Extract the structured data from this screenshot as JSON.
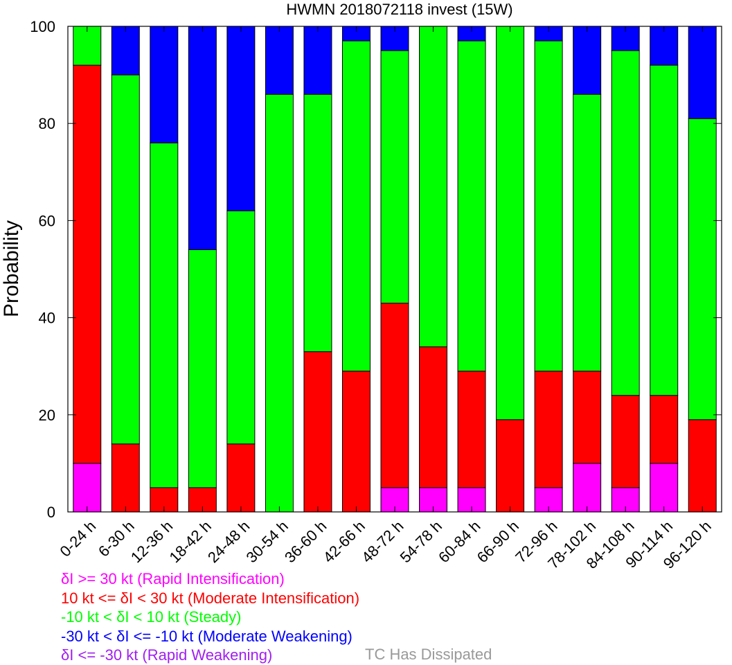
{
  "chart_data": {
    "type": "bar",
    "stacked": true,
    "title": "HWMN 2018072118 invest (15W)",
    "xlabel": "",
    "ylabel": "Probability",
    "ylim": [
      0,
      100
    ],
    "yticks": [
      0,
      20,
      40,
      60,
      80,
      100
    ],
    "grid": false,
    "categories": [
      "0-24 h",
      "6-30 h",
      "12-36 h",
      "18-42 h",
      "24-48 h",
      "30-54 h",
      "36-60 h",
      "42-66 h",
      "48-72 h",
      "54-78 h",
      "60-84 h",
      "66-90 h",
      "72-96 h",
      "78-102 h",
      "84-108 h",
      "90-114 h",
      "96-120 h"
    ],
    "series": [
      {
        "color": "#ff00ff",
        "values": [
          10,
          0,
          0,
          0,
          0,
          0,
          0,
          0,
          5,
          5,
          5,
          0,
          5,
          10,
          5,
          10,
          0
        ]
      },
      {
        "color": "#ff0000",
        "values": [
          82,
          14,
          5,
          5,
          14,
          0,
          33,
          29,
          38,
          29,
          24,
          19,
          24,
          19,
          19,
          14,
          19
        ]
      },
      {
        "color": "#00ff00",
        "values": [
          8,
          76,
          71,
          49,
          48,
          86,
          53,
          68,
          52,
          66,
          68,
          81,
          68,
          57,
          71,
          68,
          62
        ]
      },
      {
        "color": "#0000ff",
        "values": [
          0,
          10,
          24,
          46,
          38,
          14,
          14,
          3,
          5,
          0,
          3,
          0,
          3,
          14,
          5,
          8,
          19
        ]
      },
      {
        "color": "#a020f0",
        "values": [
          0,
          0,
          0,
          0,
          0,
          0,
          0,
          0,
          0,
          0,
          0,
          0,
          0,
          0,
          0,
          0,
          0
        ]
      }
    ]
  },
  "legend": {
    "items": [
      {
        "text": "δI >= 30 kt (Rapid Intensification)",
        "color": "#ff00ff"
      },
      {
        "text": "10 kt <= δI < 30 kt (Moderate Intensification)",
        "color": "#ff0000"
      },
      {
        "text": "-10 kt < δI < 10 kt (Steady)",
        "color": "#00ff00"
      },
      {
        "text": "-30 kt < δI <= -10 kt (Moderate Weakening)",
        "color": "#0000ff"
      },
      {
        "text": "δI <= -30 kt (Rapid Weakening)",
        "color": "#a020f0"
      }
    ],
    "dissipated": {
      "text": "TC Has Dissipated",
      "color": "#999999"
    }
  }
}
